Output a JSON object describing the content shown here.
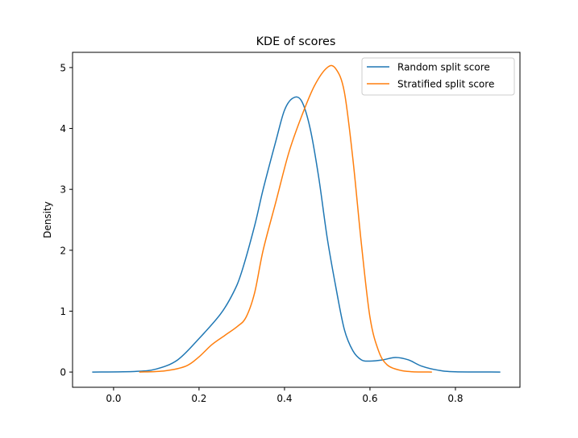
{
  "chart_data": {
    "type": "line",
    "title": "KDE of scores",
    "xlabel": "",
    "ylabel": "Density",
    "xlim": [
      -0.096,
      0.951
    ],
    "ylim": [
      -0.25,
      5.25
    ],
    "xticks": [
      0.0,
      0.2,
      0.4,
      0.6,
      0.8
    ],
    "xtick_labels": [
      "0.0",
      "0.2",
      "0.4",
      "0.6",
      "0.8"
    ],
    "yticks": [
      0,
      1,
      2,
      3,
      4,
      5
    ],
    "ytick_labels": [
      "0",
      "1",
      "2",
      "3",
      "4",
      "5"
    ],
    "grid": false,
    "legend_position": "top-right",
    "series": [
      {
        "name": "Random split score",
        "color": "#1f77b4",
        "x": [
          -0.05,
          0.05,
          0.1,
          0.15,
          0.2,
          0.25,
          0.28,
          0.3,
          0.33,
          0.35,
          0.38,
          0.4,
          0.42,
          0.44,
          0.46,
          0.48,
          0.5,
          0.52,
          0.54,
          0.56,
          0.58,
          0.6,
          0.63,
          0.66,
          0.69,
          0.72,
          0.76,
          0.8,
          0.905
        ],
        "y": [
          0,
          0.01,
          0.05,
          0.2,
          0.55,
          0.95,
          1.3,
          1.65,
          2.4,
          3.0,
          3.8,
          4.3,
          4.5,
          4.45,
          4.0,
          3.2,
          2.2,
          1.4,
          0.7,
          0.35,
          0.2,
          0.18,
          0.2,
          0.24,
          0.2,
          0.1,
          0.03,
          0.005,
          0
        ]
      },
      {
        "name": "Stratified split score",
        "color": "#ff7f0e",
        "x": [
          0.06,
          0.12,
          0.17,
          0.2,
          0.23,
          0.26,
          0.29,
          0.31,
          0.33,
          0.35,
          0.38,
          0.41,
          0.44,
          0.47,
          0.5,
          0.52,
          0.54,
          0.56,
          0.58,
          0.6,
          0.62,
          0.64,
          0.67,
          0.7,
          0.745
        ],
        "y": [
          0,
          0.02,
          0.1,
          0.25,
          0.45,
          0.6,
          0.75,
          0.9,
          1.3,
          2.0,
          2.8,
          3.6,
          4.2,
          4.7,
          5.0,
          4.98,
          4.6,
          3.5,
          2.1,
          0.9,
          0.35,
          0.12,
          0.03,
          0.005,
          0
        ]
      }
    ]
  }
}
